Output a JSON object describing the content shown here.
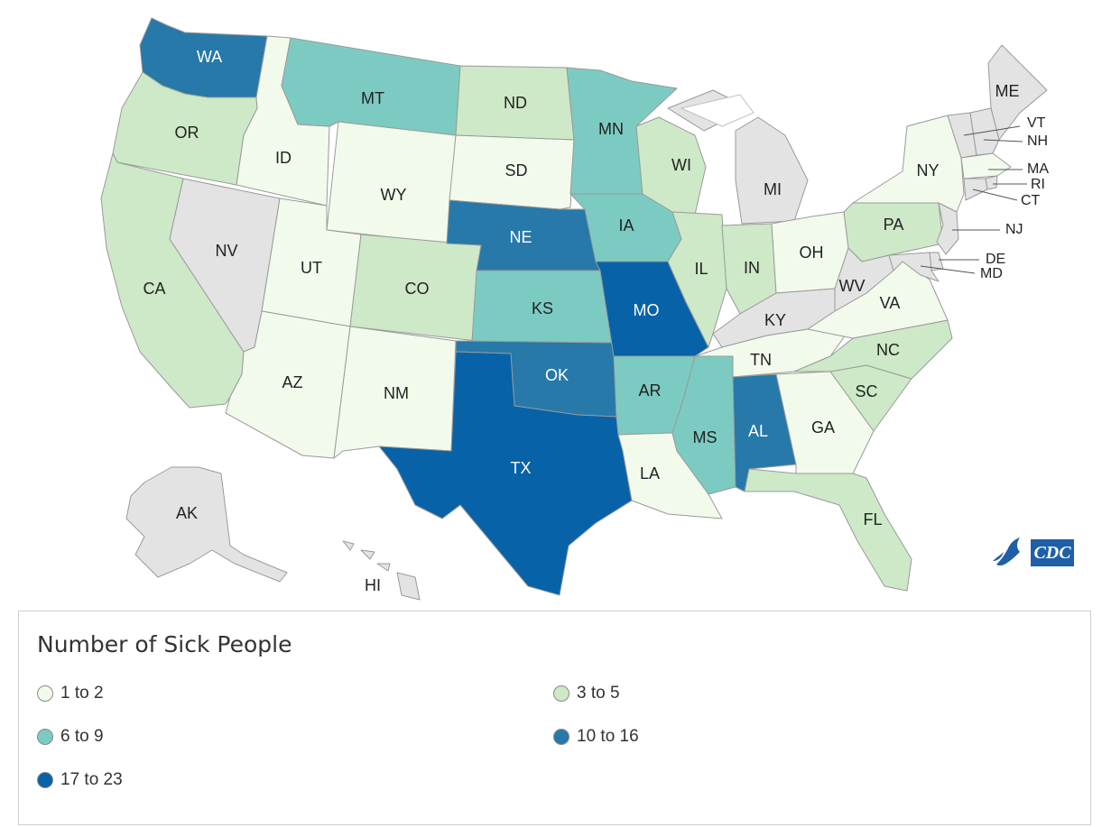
{
  "map": {
    "colors": {
      "none": "#e3e3e3",
      "c1": "#f2faec",
      "c2": "#cde9c7",
      "c3": "#7ccbc2",
      "c4": "#2679a8",
      "c5": "#0862a8"
    },
    "states": [
      {
        "abbr": "WA",
        "cls": "c4"
      },
      {
        "abbr": "OR",
        "cls": "c2"
      },
      {
        "abbr": "CA",
        "cls": "c2"
      },
      {
        "abbr": "ID",
        "cls": "c1"
      },
      {
        "abbr": "NV",
        "cls": "none"
      },
      {
        "abbr": "MT",
        "cls": "c3"
      },
      {
        "abbr": "WY",
        "cls": "c1"
      },
      {
        "abbr": "UT",
        "cls": "c1"
      },
      {
        "abbr": "AZ",
        "cls": "c1"
      },
      {
        "abbr": "CO",
        "cls": "c2"
      },
      {
        "abbr": "NM",
        "cls": "c1"
      },
      {
        "abbr": "ND",
        "cls": "c2"
      },
      {
        "abbr": "SD",
        "cls": "c1"
      },
      {
        "abbr": "NE",
        "cls": "c4"
      },
      {
        "abbr": "KS",
        "cls": "c3"
      },
      {
        "abbr": "OK",
        "cls": "c4"
      },
      {
        "abbr": "TX",
        "cls": "c5"
      },
      {
        "abbr": "MN",
        "cls": "c3"
      },
      {
        "abbr": "IA",
        "cls": "c3"
      },
      {
        "abbr": "MO",
        "cls": "c5"
      },
      {
        "abbr": "AR",
        "cls": "c3"
      },
      {
        "abbr": "LA",
        "cls": "c1"
      },
      {
        "abbr": "WI",
        "cls": "c2"
      },
      {
        "abbr": "IL",
        "cls": "c2"
      },
      {
        "abbr": "MS",
        "cls": "c3"
      },
      {
        "abbr": "MI",
        "cls": "none"
      },
      {
        "abbr": "IN",
        "cls": "c2"
      },
      {
        "abbr": "OH",
        "cls": "c1"
      },
      {
        "abbr": "KY",
        "cls": "none"
      },
      {
        "abbr": "TN",
        "cls": "c1"
      },
      {
        "abbr": "AL",
        "cls": "c4"
      },
      {
        "abbr": "GA",
        "cls": "c1"
      },
      {
        "abbr": "FL",
        "cls": "c2"
      },
      {
        "abbr": "SC",
        "cls": "c2"
      },
      {
        "abbr": "NC",
        "cls": "c2"
      },
      {
        "abbr": "VA",
        "cls": "c1"
      },
      {
        "abbr": "WV",
        "cls": "none"
      },
      {
        "abbr": "PA",
        "cls": "c2"
      },
      {
        "abbr": "NY",
        "cls": "c1"
      },
      {
        "abbr": "ME",
        "cls": "none"
      },
      {
        "abbr": "VT",
        "cls": "none"
      },
      {
        "abbr": "NH",
        "cls": "none"
      },
      {
        "abbr": "MA",
        "cls": "c1"
      },
      {
        "abbr": "RI",
        "cls": "none"
      },
      {
        "abbr": "CT",
        "cls": "none"
      },
      {
        "abbr": "NJ",
        "cls": "none"
      },
      {
        "abbr": "DE",
        "cls": "none"
      },
      {
        "abbr": "MD",
        "cls": "none"
      },
      {
        "abbr": "AK",
        "cls": "none"
      },
      {
        "abbr": "HI",
        "cls": "none"
      }
    ]
  },
  "logo": {
    "text": "CDC"
  },
  "legend": {
    "title": "Number of Sick People",
    "items": [
      {
        "label": "1 to 2",
        "color": "#f2faec"
      },
      {
        "label": "3 to 5",
        "color": "#cde9c7"
      },
      {
        "label": "6 to 9",
        "color": "#7ccbc2"
      },
      {
        "label": "10 to 16",
        "color": "#2679a8"
      },
      {
        "label": "17 to 23",
        "color": "#0862a8"
      }
    ]
  }
}
